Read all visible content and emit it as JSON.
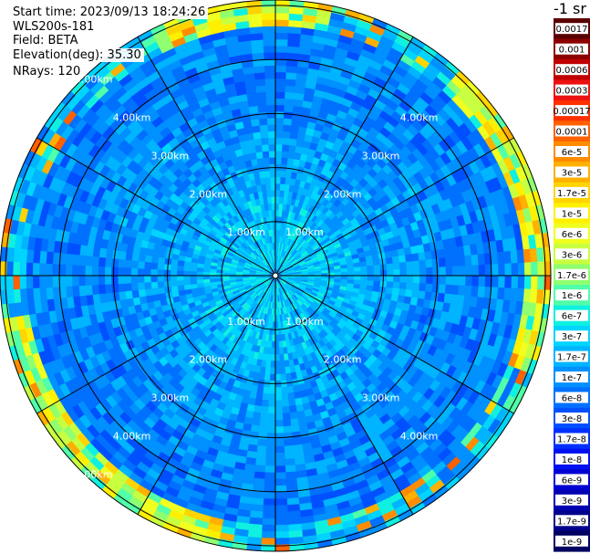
{
  "header": {
    "start_time": "Start time: 2023/09/13 18:24:26",
    "device": "WLS200s-181",
    "field": "Field: BETA",
    "elevation": "Elevation(deg): 35.30",
    "nrays": "NRays: 120"
  },
  "unit_label": "-1 sr",
  "chart_data": {
    "type": "heatmap",
    "projection": "polar",
    "field": "BETA",
    "n_rays": 120,
    "range_rings_km": [
      1,
      2,
      3,
      4,
      5
    ],
    "range_labels": [
      "1.00km",
      "2.00km",
      "3.00km",
      "4.00km",
      "5.00km"
    ],
    "radial_lines_deg": [
      0,
      30,
      60,
      90,
      120,
      150,
      180,
      210,
      240,
      270,
      300,
      330
    ],
    "max_range_km": 5.1,
    "colorbar": {
      "scale": "log",
      "ticks": [
        "0.0017",
        "0.001",
        "0.0006",
        "0.0003",
        "0.00017",
        "0.0001",
        "6e-5",
        "3e-5",
        "1.7e-5",
        "1e-5",
        "6e-6",
        "3e-6",
        "1.7e-6",
        "1e-6",
        "6e-7",
        "3e-7",
        "1.7e-7",
        "1e-7",
        "6e-8",
        "3e-8",
        "1.7e-8",
        "1e-8",
        "6e-9",
        "3e-9",
        "1.7e-9",
        "1e-9"
      ],
      "colors": [
        "#5a0000",
        "#8c0000",
        "#c00000",
        "#ec1010",
        "#ff3000",
        "#ff6000",
        "#ff8c00",
        "#ffb000",
        "#ffd400",
        "#fff000",
        "#f0ff20",
        "#c8ff40",
        "#90ff70",
        "#50ffa8",
        "#10f0e0",
        "#00d4ff",
        "#00b4ff",
        "#0090ff",
        "#0070ff",
        "#0050ff",
        "#0030ff",
        "#0010f0",
        "#0000d4",
        "#0000b0",
        "#00008c",
        "#000060"
      ]
    }
  }
}
